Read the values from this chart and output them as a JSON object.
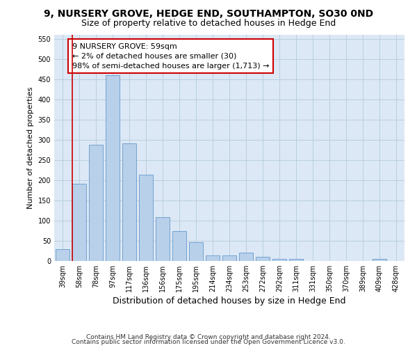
{
  "title": "9, NURSERY GROVE, HEDGE END, SOUTHAMPTON, SO30 0ND",
  "subtitle": "Size of property relative to detached houses in Hedge End",
  "xlabel": "Distribution of detached houses by size in Hedge End",
  "ylabel": "Number of detached properties",
  "categories": [
    "39sqm",
    "58sqm",
    "78sqm",
    "97sqm",
    "117sqm",
    "136sqm",
    "156sqm",
    "175sqm",
    "195sqm",
    "214sqm",
    "234sqm",
    "253sqm",
    "272sqm",
    "292sqm",
    "311sqm",
    "331sqm",
    "350sqm",
    "370sqm",
    "389sqm",
    "409sqm",
    "428sqm"
  ],
  "values": [
    30,
    192,
    288,
    460,
    292,
    213,
    109,
    74,
    47,
    13,
    13,
    21,
    10,
    5,
    5,
    0,
    0,
    0,
    0,
    5,
    0
  ],
  "bar_color": "#b8d0ea",
  "bar_edge_color": "#6699cc",
  "annotation_text": "9 NURSERY GROVE: 59sqm\n← 2% of detached houses are smaller (30)\n98% of semi-detached houses are larger (1,713) →",
  "annotation_box_color": "#ffffff",
  "annotation_box_edge_color": "#cc0000",
  "property_line_color": "#cc0000",
  "property_line_x": 0.57,
  "ylim": [
    0,
    560
  ],
  "yticks": [
    0,
    50,
    100,
    150,
    200,
    250,
    300,
    350,
    400,
    450,
    500,
    550
  ],
  "footer_line1": "Contains HM Land Registry data © Crown copyright and database right 2024.",
  "footer_line2": "Contains public sector information licensed under the Open Government Licence v3.0.",
  "background_color": "#ffffff",
  "plot_bg_color": "#dce8f5",
  "grid_color": "#b8cfe0",
  "title_fontsize": 10,
  "subtitle_fontsize": 9,
  "xlabel_fontsize": 9,
  "ylabel_fontsize": 8,
  "tick_fontsize": 7,
  "annotation_fontsize": 8,
  "footer_fontsize": 6.5
}
